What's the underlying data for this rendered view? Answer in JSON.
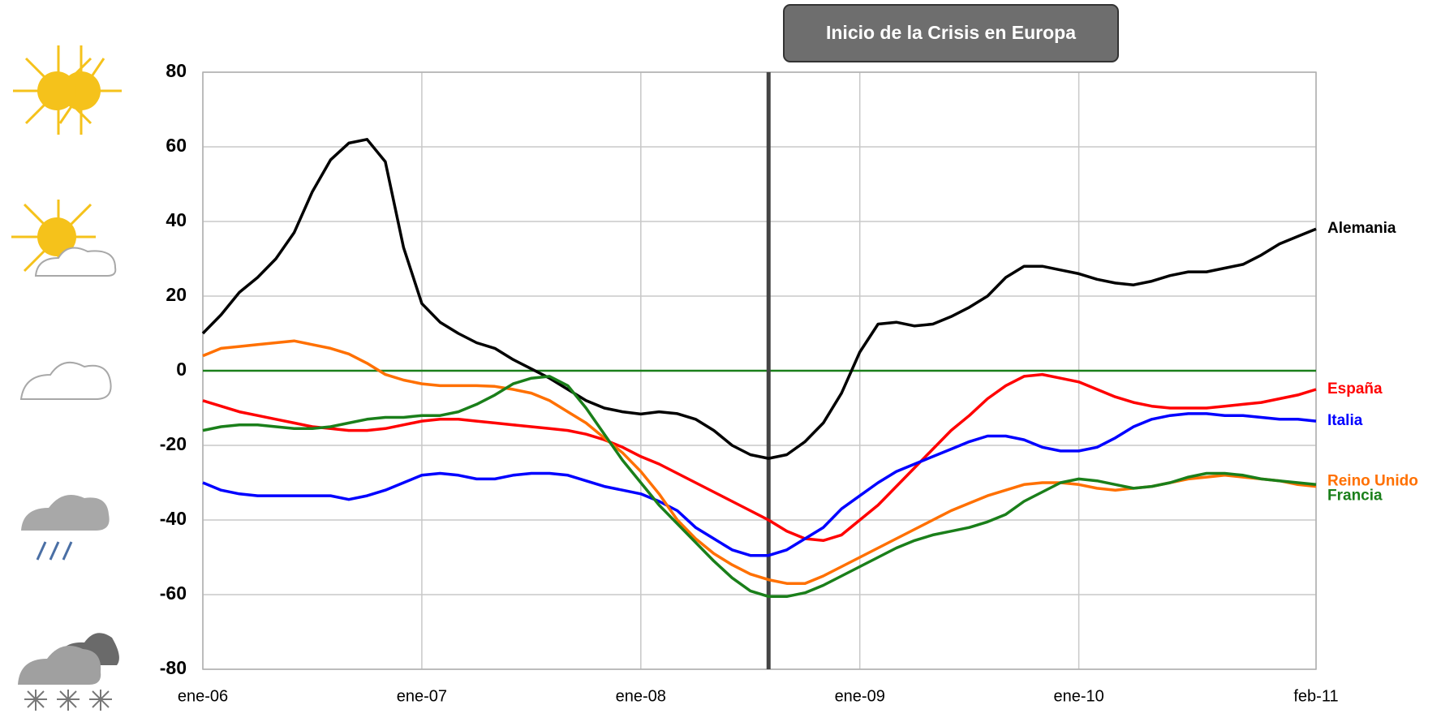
{
  "chart_data": {
    "type": "line",
    "annotation": {
      "text": "Inicio de la Crisis en Europa",
      "index": 31
    },
    "categories": [
      "ene-06",
      null,
      null,
      null,
      null,
      null,
      null,
      null,
      null,
      null,
      null,
      null,
      "ene-07",
      null,
      null,
      null,
      null,
      null,
      null,
      null,
      null,
      null,
      null,
      null,
      "ene-08",
      null,
      null,
      null,
      null,
      null,
      null,
      null,
      null,
      null,
      null,
      null,
      "ene-09",
      null,
      null,
      null,
      null,
      null,
      null,
      null,
      null,
      null,
      null,
      null,
      "ene-10",
      null,
      null,
      null,
      null,
      null,
      null,
      null,
      null,
      null,
      null,
      null,
      null,
      "feb-11"
    ],
    "series": [
      {
        "name": "Alemania",
        "color": "#000000",
        "values": [
          10,
          15,
          21,
          25,
          30,
          37,
          48,
          56.5,
          61,
          62,
          56,
          33,
          18,
          13,
          10,
          7.5,
          6,
          3,
          0.5,
          -2,
          -5,
          -8,
          -10,
          -11,
          -11.6,
          -11,
          -11.5,
          -13,
          -16,
          -20,
          -22.5,
          -23.5,
          -22.5,
          -19,
          -14,
          -6,
          5,
          12.5,
          13,
          12,
          12.5,
          14.5,
          17,
          20,
          25,
          28,
          28,
          27,
          26,
          24.5,
          23.5,
          23,
          24,
          25.5,
          26.5,
          26.5,
          27.5,
          28.5,
          31,
          34,
          36,
          38
        ]
      },
      {
        "name": "España",
        "color": "#ff0000",
        "values": [
          -8,
          -9.5,
          -11,
          -12,
          -13,
          -14,
          -15,
          -15.5,
          -16,
          -16,
          -15.5,
          -14.5,
          -13.5,
          -13,
          -13,
          -13.5,
          -14,
          -14.5,
          -15,
          -15.5,
          -16,
          -17,
          -18.5,
          -20.5,
          -23,
          -25,
          -27.5,
          -30,
          -32.5,
          -35,
          -37.5,
          -40,
          -43,
          -45,
          -45.5,
          -44,
          -40,
          -36,
          -31,
          -26,
          -21,
          -16,
          -12,
          -7.5,
          -4,
          -1.5,
          -1,
          -2,
          -3,
          -5,
          -7,
          -8.5,
          -9.5,
          -10,
          -10,
          -10,
          -9.5,
          -9,
          -8.5,
          -7.5,
          -6.5,
          -5
        ]
      },
      {
        "name": "Italia",
        "color": "#0000ff",
        "values": [
          -30,
          -32,
          -33,
          -33.5,
          -33.5,
          -33.5,
          -33.5,
          -33.5,
          -34.5,
          -33.5,
          -32,
          -30,
          -28,
          -27.5,
          -28,
          -29,
          -29,
          -28,
          -27.5,
          -27.5,
          -28,
          -29.5,
          -31,
          -32,
          -33,
          -35,
          -37.5,
          -42,
          -45,
          -48,
          -49.5,
          -49.5,
          -48,
          -45,
          -42,
          -37,
          -33.5,
          -30,
          -27,
          -25,
          -23,
          -21,
          -19,
          -17.5,
          -17.5,
          -18.5,
          -20.5,
          -21.5,
          -21.5,
          -20.5,
          -18,
          -15,
          -13,
          -12,
          -11.5,
          -11.5,
          -12,
          -12,
          -12.5,
          -13,
          -13,
          -13.5
        ]
      },
      {
        "name": "Reino Unido",
        "color": "#ff7000",
        "values": [
          4,
          6,
          6.5,
          7,
          7.5,
          8,
          7,
          6,
          4.5,
          2,
          -1,
          -2.5,
          -3.5,
          -4,
          -4,
          -4,
          -4.2,
          -5,
          -6,
          -8,
          -11,
          -14,
          -18,
          -22,
          -27,
          -33,
          -40,
          -45,
          -49,
          -52,
          -54.5,
          -56,
          -57,
          -57,
          -55,
          -52.5,
          -50,
          -47.5,
          -45,
          -42.5,
          -40,
          -37.5,
          -35.5,
          -33.5,
          -32,
          -30.5,
          -30,
          -30,
          -30.5,
          -31.5,
          -32,
          -31.5,
          -31,
          -30,
          -29,
          -28.5,
          -28,
          -28.5,
          -29,
          -29.5,
          -30.5,
          -31
        ]
      },
      {
        "name": "Francia",
        "color": "#1a7f1a",
        "values": [
          -16,
          -15,
          -14.5,
          -14.5,
          -15,
          -15.5,
          -15.5,
          -15,
          -14,
          -13,
          -12.5,
          -12.5,
          -12,
          -12,
          -11,
          -9,
          -6.5,
          -3.5,
          -2,
          -1.5,
          -4,
          -10,
          -17,
          -24,
          -30,
          -36,
          -41,
          -46,
          -51,
          -55.5,
          -59,
          -60.5,
          -60.5,
          -59.5,
          -57.5,
          -55,
          -52.5,
          -50,
          -47.5,
          -45.5,
          -44,
          -43,
          -42,
          -40.5,
          -38.5,
          -35,
          -32.5,
          -30,
          -29,
          -29.5,
          -30.5,
          -31.5,
          -31,
          -30,
          -28.5,
          -27.5,
          -27.5,
          -28,
          -29,
          -29.5,
          -30,
          -30.5
        ]
      }
    ],
    "ylim": [
      -80,
      80
    ],
    "yticks": [
      -80,
      -60,
      -40,
      -20,
      0,
      20,
      40,
      60,
      80
    ],
    "grid": true,
    "zero_line_color": "#1a7f1a"
  }
}
